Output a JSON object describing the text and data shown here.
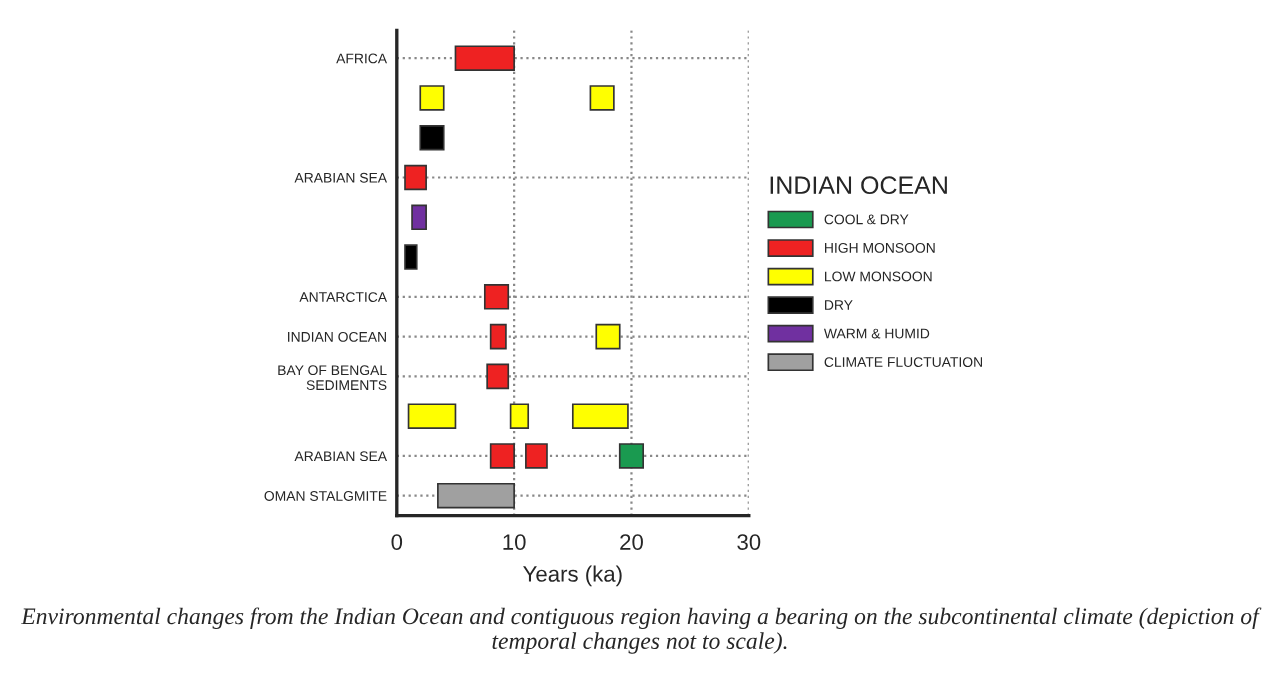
{
  "chart_data": {
    "type": "bar",
    "orientation": "horizontal",
    "categories": [
      "AFRICA",
      null,
      null,
      "ARABIAN SEA",
      null,
      null,
      "ANTARCTICA",
      "INDIAN OCEAN",
      "BAY OF BENGAL\nSEDIMENTS",
      null,
      "ARABIAN SEA",
      "OMAN STALGMITE"
    ],
    "series": [
      {
        "name": "COOL & DRY",
        "color": "#1a9a50",
        "values": [
          null,
          null,
          null,
          null,
          null,
          null,
          null,
          null,
          null,
          null,
          2,
          null
        ],
        "base": [
          null,
          null,
          null,
          null,
          null,
          null,
          null,
          null,
          null,
          null,
          19,
          null
        ]
      },
      {
        "name": "HIGH MONSOON",
        "color": "#ee2222",
        "values": [
          5,
          null,
          null,
          1.8,
          null,
          null,
          2,
          1.3,
          1.8,
          null,
          2,
          null
        ],
        "base": [
          5,
          null,
          null,
          0.7,
          null,
          null,
          7.5,
          8,
          7.7,
          null,
          8,
          null
        ]
      },
      {
        "color": "#ee2222",
        "values": [
          null,
          null,
          null,
          null,
          null,
          null,
          null,
          null,
          null,
          null,
          1.8,
          null
        ],
        "base": [
          null,
          null,
          null,
          null,
          null,
          null,
          null,
          null,
          null,
          null,
          11,
          null
        ]
      },
      {
        "name": "LOW MONSOON",
        "color": "#ffff00",
        "values": [
          null,
          2,
          null,
          null,
          null,
          null,
          null,
          2,
          null,
          4,
          null,
          null
        ],
        "base": [
          null,
          2,
          null,
          null,
          null,
          null,
          null,
          17,
          null,
          1,
          null,
          null
        ]
      },
      {
        "color": "#ffff00",
        "values": [
          null,
          2,
          null,
          null,
          null,
          null,
          null,
          null,
          null,
          1.5,
          null,
          null
        ],
        "base": [
          null,
          16.5,
          null,
          null,
          null,
          null,
          null,
          null,
          null,
          9.7,
          null,
          null
        ]
      },
      {
        "color": "#ffff00",
        "values": [
          null,
          null,
          null,
          null,
          null,
          null,
          null,
          null,
          null,
          4.7,
          null,
          null
        ],
        "base": [
          null,
          null,
          null,
          null,
          null,
          null,
          null,
          null,
          null,
          15,
          null,
          null
        ]
      },
      {
        "name": "DRY",
        "color": "#000000",
        "values": [
          null,
          null,
          2,
          null,
          null,
          1,
          null,
          null,
          null,
          null,
          null,
          null
        ],
        "base": [
          null,
          null,
          2,
          null,
          null,
          0.7,
          null,
          null,
          null,
          null,
          null,
          null
        ]
      },
      {
        "name": "WARM & HUMID",
        "color": "#7030a0",
        "values": [
          null,
          null,
          null,
          null,
          1.2,
          null,
          null,
          null,
          null,
          null,
          null,
          null
        ],
        "base": [
          null,
          null,
          null,
          null,
          1.3,
          null,
          null,
          null,
          null,
          null,
          null,
          null
        ]
      },
      {
        "name": "CLIMATE FLUCTUATION",
        "color": "#a0a0a0",
        "values": [
          null,
          null,
          null,
          null,
          null,
          null,
          null,
          null,
          null,
          null,
          null,
          6.5
        ],
        "base": [
          null,
          null,
          null,
          null,
          null,
          null,
          null,
          null,
          null,
          null,
          null,
          3.5
        ]
      }
    ],
    "xlabel": "Years (ka)",
    "xlim": [
      0,
      30
    ],
    "xticks": [
      0,
      10,
      20,
      30
    ],
    "grid": true,
    "legend": "right",
    "legend_title": "INDIAN OCEAN",
    "annotations": [
      "Environmental changes from the Indian Ocean and contiguous region having a bearing on the subcontinental climate (depiction of temporal changes not to scale)."
    ]
  }
}
